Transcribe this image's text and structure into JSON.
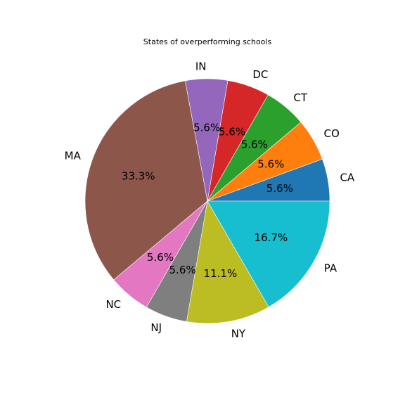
{
  "chart_data": {
    "type": "pie",
    "title": "States of overperforming schools",
    "categories": [
      "CA",
      "CO",
      "CT",
      "DC",
      "IN",
      "MA",
      "NC",
      "NJ",
      "NY",
      "PA"
    ],
    "values": [
      5.6,
      5.6,
      5.6,
      5.6,
      5.6,
      33.3,
      5.6,
      5.6,
      11.1,
      16.7
    ],
    "percent_labels": [
      "5.6%",
      "5.6%",
      "5.6%",
      "5.6%",
      "5.6%",
      "33.3%",
      "5.6%",
      "5.6%",
      "11.1%",
      "16.7%"
    ],
    "colors": [
      "#1f77b4",
      "#ff7f0e",
      "#2ca02c",
      "#d62728",
      "#9467bd",
      "#8c564b",
      "#e377c2",
      "#7f7f7f",
      "#bcbd22",
      "#17becf"
    ],
    "start_angle_deg": 0,
    "direction": "counterclockwise"
  }
}
